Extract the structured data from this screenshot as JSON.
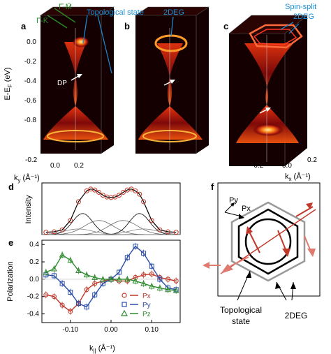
{
  "panels": {
    "a": {
      "label": "a"
    },
    "b": {
      "label": "b"
    },
    "c": {
      "label": "c"
    },
    "d": {
      "label": "d"
    },
    "e": {
      "label": "e"
    },
    "f": {
      "label": "f"
    }
  },
  "top": {
    "y_axis_title_base": "E-E",
    "y_axis_title_sub": "F",
    "y_axis_title_unit": " (eV)",
    "y_ticks": [
      "0.0",
      "-0.2",
      "-0.4",
      "-0.6",
      "-0.8"
    ],
    "ky_ticks": [
      "-0.2",
      "0.0",
      "0.2"
    ],
    "kx_ticks": [
      "-0.2",
      "0.0",
      "0.2"
    ],
    "ky_label_base": "k",
    "ky_label_sub": "y",
    "ky_label_unit": " (Å⁻¹)",
    "kx_label_base": "k",
    "kx_label_sub": "x",
    "kx_label_unit": " (Å⁻¹)",
    "annotations": {
      "gamma_k": "Γ̄-K̄",
      "gamma_m": "Γ̄-M̄",
      "topological_state": "Topological state",
      "dp": "DP",
      "twodeg_b": "2DEG",
      "spin_split": "Spin-split",
      "twodeg_c": "2DEG"
    },
    "colors": {
      "cyan_annotation": "#1a8fd6",
      "green_annotation": "#2a8a2a",
      "arpes_dark": "#000000",
      "arpes_glow": "#ffd24a"
    }
  },
  "chart_data": [
    {
      "type": "line",
      "panel": "d",
      "ylabel": "Intensity",
      "series": [
        {
          "name": "data",
          "style": "circles",
          "color": "#c0392b",
          "x": [
            -0.16,
            -0.14,
            -0.12,
            -0.1,
            -0.08,
            -0.06,
            -0.05,
            -0.04,
            -0.03,
            -0.02,
            -0.01,
            0.0,
            0.01,
            0.02,
            0.03,
            0.04,
            0.05,
            0.06,
            0.07,
            0.08,
            0.1,
            0.12,
            0.14,
            0.16
          ],
          "y": [
            0.05,
            0.06,
            0.1,
            0.3,
            0.7,
            0.93,
            0.97,
            0.95,
            0.9,
            0.84,
            0.8,
            0.79,
            0.8,
            0.84,
            0.9,
            0.95,
            0.97,
            0.93,
            0.86,
            0.7,
            0.3,
            0.1,
            0.06,
            0.05
          ]
        }
      ]
    },
    {
      "type": "scatter",
      "panel": "e",
      "xlabel_base": "k",
      "xlabel_sub": "||",
      "xlabel_unit": " (Å⁻¹)",
      "ylabel": "Polarization",
      "x_ticks": [
        "-0.10",
        "0.00",
        "0.10"
      ],
      "y_ticks": [
        "0.4",
        "0.2",
        "0.0",
        "-0.2",
        "-0.4"
      ],
      "xlim": [
        -0.17,
        0.17
      ],
      "ylim": [
        -0.5,
        0.45
      ],
      "series": [
        {
          "name": "Px",
          "color": "#c0392b",
          "marker": "circle",
          "x": [
            -0.16,
            -0.14,
            -0.12,
            -0.1,
            -0.08,
            -0.06,
            -0.04,
            -0.02,
            0.0,
            0.02,
            0.04,
            0.06,
            0.08,
            0.1,
            0.12,
            0.14,
            0.16
          ],
          "y": [
            -0.18,
            -0.2,
            -0.3,
            -0.37,
            -0.28,
            -0.12,
            -0.05,
            -0.02,
            0.0,
            -0.02,
            -0.02,
            0.02,
            0.05,
            0.06,
            0.02,
            0.0,
            -0.02
          ]
        },
        {
          "name": "Py",
          "color": "#2d4fa8",
          "marker": "square",
          "x": [
            -0.16,
            -0.14,
            -0.12,
            -0.1,
            -0.08,
            -0.06,
            -0.04,
            -0.02,
            0.0,
            0.02,
            0.04,
            0.06,
            0.08,
            0.1,
            0.12,
            0.14,
            0.16
          ],
          "y": [
            0.05,
            0.04,
            -0.05,
            -0.15,
            -0.28,
            -0.32,
            -0.18,
            -0.05,
            0.0,
            0.08,
            0.25,
            0.38,
            0.3,
            0.15,
            0.0,
            -0.1,
            -0.12
          ]
        },
        {
          "name": "Pz",
          "color": "#2e8b2e",
          "marker": "triangle",
          "x": [
            -0.16,
            -0.14,
            -0.12,
            -0.1,
            -0.08,
            -0.06,
            -0.04,
            -0.02,
            0.0,
            0.02,
            0.04,
            0.06,
            0.08,
            0.1,
            0.12,
            0.14,
            0.16
          ],
          "y": [
            0.08,
            0.12,
            0.28,
            0.22,
            0.1,
            0.05,
            0.02,
            0.0,
            0.0,
            0.0,
            0.0,
            -0.02,
            -0.05,
            -0.08,
            -0.1,
            -0.12,
            -0.13
          ]
        }
      ]
    }
  ],
  "schematic": {
    "py_label": "Py",
    "px_label": "Px",
    "topological_label": "Topological",
    "topological_label2": "state",
    "twodeg_label": "2DEG"
  }
}
